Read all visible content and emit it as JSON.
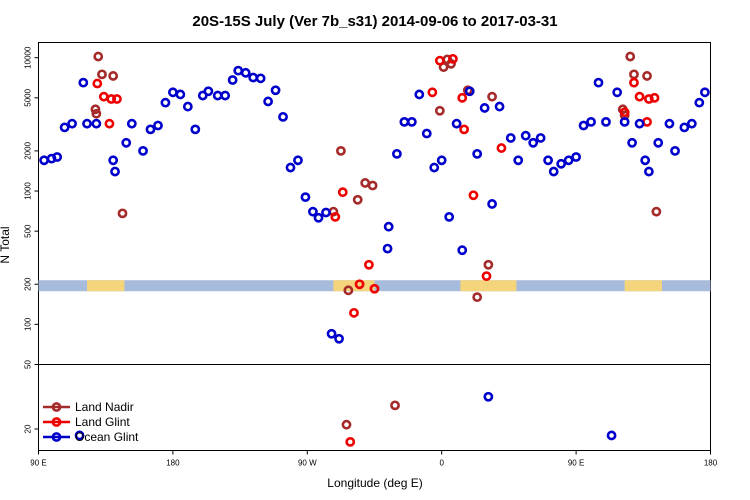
{
  "chart_data": {
    "type": "scatter",
    "title": "20S-15S July (Ver 7b_s31)   2014-09-06 to 2017-03-31",
    "xlabel": "Longitude (deg E)",
    "ylabel": "N Total",
    "xlim": [
      0,
      360
    ],
    "x_ticks": [
      {
        "pos": 0,
        "label": "90 E"
      },
      {
        "pos": 72,
        "label": "180"
      },
      {
        "pos": 144,
        "label": "90 W"
      },
      {
        "pos": 216,
        "label": "0"
      },
      {
        "pos": 288,
        "label": "90 E"
      },
      {
        "pos": 360,
        "label": "180"
      }
    ],
    "upper_panel": {
      "scale": "log",
      "ylim": [
        50,
        13000
      ],
      "y_ticks": [
        {
          "value": 100,
          "label": "100"
        },
        {
          "value": 200,
          "label": "200"
        },
        {
          "value": 500,
          "label": "500"
        },
        {
          "value": 1000,
          "label": "1000"
        },
        {
          "value": 2000,
          "label": "2000"
        },
        {
          "value": 5000,
          "label": "5000"
        },
        {
          "value": 10000,
          "label": "10000"
        }
      ]
    },
    "lower_panel": {
      "scale": "linear",
      "ylim": [
        10,
        50
      ],
      "y_ticks": [
        {
          "value": 20,
          "label": "20"
        },
        {
          "value": 50,
          "label": "50"
        }
      ]
    },
    "surface_band": {
      "value": 195,
      "ocean_color": "#a7bcdc",
      "land_color": "#f5d57c",
      "land_ranges": [
        [
          26,
          46
        ],
        [
          158,
          180
        ],
        [
          226,
          256
        ],
        [
          314,
          334
        ]
      ]
    },
    "series": [
      {
        "name": "Land Nadir",
        "color": "#a52a2a",
        "points": [
          [
            30.5,
            4100
          ],
          [
            31,
            3800
          ],
          [
            32,
            10200
          ],
          [
            34,
            7500
          ],
          [
            40,
            7300
          ],
          [
            45,
            680
          ],
          [
            158,
            700
          ],
          [
            162,
            2000
          ],
          [
            166,
            180
          ],
          [
            171,
            860
          ],
          [
            175,
            1150
          ],
          [
            179,
            1100
          ],
          [
            215,
            4000
          ],
          [
            217,
            8500
          ],
          [
            219,
            9700
          ],
          [
            221,
            9000
          ],
          [
            230,
            5700
          ],
          [
            235,
            160
          ],
          [
            243,
            5100
          ],
          [
            241,
            280
          ],
          [
            313,
            4100
          ],
          [
            314,
            3700
          ],
          [
            317,
            10200
          ],
          [
            319,
            7500
          ],
          [
            326,
            7300
          ],
          [
            331,
            700
          ],
          [
            165,
            22
          ],
          [
            191,
            31
          ]
        ]
      },
      {
        "name": "Land Glint",
        "color": "#ee0000",
        "points": [
          [
            31.5,
            6400
          ],
          [
            35,
            5100
          ],
          [
            39,
            4900
          ],
          [
            42,
            4900
          ],
          [
            38,
            3200
          ],
          [
            159,
            640
          ],
          [
            163,
            980
          ],
          [
            169,
            122
          ],
          [
            172,
            200
          ],
          [
            177,
            280
          ],
          [
            180,
            185
          ],
          [
            211,
            5500
          ],
          [
            215,
            9500
          ],
          [
            222,
            9800
          ],
          [
            227,
            5000
          ],
          [
            228,
            2900
          ],
          [
            233,
            930
          ],
          [
            240,
            230
          ],
          [
            248,
            2100
          ],
          [
            314,
            3900
          ],
          [
            319,
            6500
          ],
          [
            322,
            5100
          ],
          [
            327,
            4900
          ],
          [
            330,
            5000
          ],
          [
            326,
            3300
          ],
          [
            167,
            14
          ]
        ]
      },
      {
        "name": "Ocean Glint",
        "color": "#0000cc",
        "points": [
          [
            3,
            1700
          ],
          [
            7,
            1750
          ],
          [
            10,
            1800
          ],
          [
            14,
            3000
          ],
          [
            18,
            3200
          ],
          [
            24,
            6500
          ],
          [
            26,
            3200
          ],
          [
            31,
            3200
          ],
          [
            40,
            1700
          ],
          [
            41,
            1400
          ],
          [
            47,
            2300
          ],
          [
            50,
            3200
          ],
          [
            56,
            2000
          ],
          [
            60,
            2900
          ],
          [
            64,
            3100
          ],
          [
            68,
            4600
          ],
          [
            72,
            5500
          ],
          [
            76,
            5300
          ],
          [
            80,
            4300
          ],
          [
            84,
            2900
          ],
          [
            88,
            5200
          ],
          [
            91,
            5600
          ],
          [
            96,
            5200
          ],
          [
            100,
            5200
          ],
          [
            104,
            6800
          ],
          [
            107,
            8000
          ],
          [
            111,
            7700
          ],
          [
            115,
            7100
          ],
          [
            119,
            7000
          ],
          [
            123,
            4700
          ],
          [
            127,
            5700
          ],
          [
            131,
            3600
          ],
          [
            135,
            1500
          ],
          [
            139,
            1700
          ],
          [
            143,
            900
          ],
          [
            147,
            700
          ],
          [
            150,
            630
          ],
          [
            154,
            690
          ],
          [
            157,
            85
          ],
          [
            161,
            78
          ],
          [
            187,
            370
          ],
          [
            187.6,
            540
          ],
          [
            192,
            1900
          ],
          [
            196,
            3300
          ],
          [
            200,
            3300
          ],
          [
            204,
            5300
          ],
          [
            208,
            2700
          ],
          [
            212,
            1500
          ],
          [
            216,
            1700
          ],
          [
            220,
            640
          ],
          [
            224,
            3200
          ],
          [
            227,
            360
          ],
          [
            231,
            5600
          ],
          [
            235,
            1900
          ],
          [
            239,
            4200
          ],
          [
            243,
            800
          ],
          [
            247,
            4300
          ],
          [
            253,
            2500
          ],
          [
            257,
            1700
          ],
          [
            261,
            2600
          ],
          [
            265,
            2300
          ],
          [
            269,
            2500
          ],
          [
            273,
            1700
          ],
          [
            276,
            1400
          ],
          [
            280,
            1600
          ],
          [
            284,
            1700
          ],
          [
            288,
            1800
          ],
          [
            292,
            3100
          ],
          [
            296,
            3300
          ],
          [
            300,
            6500
          ],
          [
            304,
            3300
          ],
          [
            310,
            5500
          ],
          [
            314,
            3300
          ],
          [
            318,
            2300
          ],
          [
            322,
            3200
          ],
          [
            325,
            1700
          ],
          [
            327,
            1400
          ],
          [
            332,
            2300
          ],
          [
            338,
            3200
          ],
          [
            341,
            2000
          ],
          [
            346,
            3000
          ],
          [
            350,
            3200
          ],
          [
            354,
            4600
          ],
          [
            357,
            5500
          ],
          [
            22,
            17
          ],
          [
            307,
            17
          ],
          [
            241,
            35
          ]
        ]
      }
    ]
  }
}
